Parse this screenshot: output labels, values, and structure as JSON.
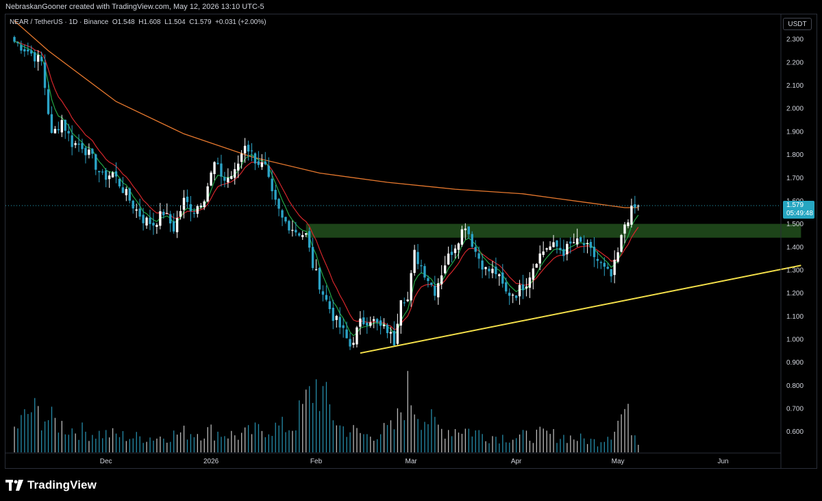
{
  "header": {
    "credit": "NebraskanGooner created with TradingView.com, May 12, 2026 13:10 UTC-5"
  },
  "legend": {
    "symbol": "NEAR / TetherUS · 1D · Binance",
    "open_label": "O",
    "open": "1.548",
    "high_label": "H",
    "high": "1.608",
    "low_label": "L",
    "low": "1.504",
    "close_label": "C",
    "close": "1.579",
    "change": "+0.031 (+2.00%)"
  },
  "currency": "USDT",
  "price_tag": {
    "price": "1.579",
    "countdown": "05:49:48"
  },
  "footer": {
    "brand": "TradingView"
  },
  "colors": {
    "background": "#000000",
    "up_candle": "#ffffff",
    "down_candle": "#2ba3c6",
    "ema_fast": "#22a745",
    "ema_mid": "#d6262b",
    "ma_slow": "#e8792e",
    "zone": "#1f4a1b",
    "trendline": "#f5e14a",
    "price_line": "#26a6c1"
  },
  "chart_data": {
    "type": "candlestick",
    "title": "NEAR / TetherUS · 1D · Binance",
    "ylim": [
      0.5,
      2.36
    ],
    "y_ticks": [
      "2.300",
      "2.200",
      "2.100",
      "2.000",
      "1.900",
      "1.800",
      "1.700",
      "1.600",
      "1.500",
      "1.400",
      "1.300",
      "1.200",
      "1.100",
      "1.000",
      "0.900",
      "0.800",
      "0.700",
      "0.600"
    ],
    "x_ticks": [
      "Dec",
      "2026",
      "Feb",
      "Mar",
      "Apr",
      "May",
      "Jun"
    ],
    "x_tick_day_index": [
      27,
      58,
      89,
      117,
      148,
      178,
      209
    ],
    "last_price": 1.579,
    "anchors": [
      [
        0,
        2.29
      ],
      [
        4,
        2.25
      ],
      [
        8,
        2.2
      ],
      [
        11,
        1.88
      ],
      [
        14,
        1.95
      ],
      [
        17,
        1.85
      ],
      [
        20,
        1.84
      ],
      [
        23,
        1.78
      ],
      [
        26,
        1.7
      ],
      [
        29,
        1.72
      ],
      [
        32,
        1.65
      ],
      [
        35,
        1.58
      ],
      [
        38,
        1.52
      ],
      [
        41,
        1.5
      ],
      [
        44,
        1.55
      ],
      [
        47,
        1.48
      ],
      [
        50,
        1.6
      ],
      [
        53,
        1.56
      ],
      [
        56,
        1.62
      ],
      [
        59,
        1.76
      ],
      [
        62,
        1.69
      ],
      [
        65,
        1.72
      ],
      [
        68,
        1.85
      ],
      [
        71,
        1.78
      ],
      [
        74,
        1.74
      ],
      [
        76,
        1.62
      ],
      [
        79,
        1.52
      ],
      [
        83,
        1.47
      ],
      [
        86,
        1.45
      ],
      [
        88,
        1.32
      ],
      [
        91,
        1.2
      ],
      [
        94,
        1.1
      ],
      [
        97,
        1.03
      ],
      [
        99,
        0.97
      ],
      [
        102,
        1.07
      ],
      [
        105,
        1.09
      ],
      [
        108,
        1.05
      ],
      [
        110,
        1.04
      ],
      [
        112,
        0.99
      ],
      [
        114,
        1.19
      ],
      [
        116,
        1.17
      ],
      [
        118,
        1.37
      ],
      [
        121,
        1.29
      ],
      [
        124,
        1.21
      ],
      [
        127,
        1.33
      ],
      [
        130,
        1.41
      ],
      [
        133,
        1.5
      ],
      [
        136,
        1.38
      ],
      [
        139,
        1.3
      ],
      [
        142,
        1.29
      ],
      [
        145,
        1.2
      ],
      [
        148,
        1.2
      ],
      [
        151,
        1.25
      ],
      [
        154,
        1.35
      ],
      [
        157,
        1.4
      ],
      [
        160,
        1.4
      ],
      [
        162,
        1.38
      ],
      [
        165,
        1.42
      ],
      [
        168,
        1.41
      ],
      [
        171,
        1.36
      ],
      [
        174,
        1.3
      ],
      [
        176,
        1.27
      ],
      [
        178,
        1.37
      ],
      [
        180,
        1.5
      ],
      [
        182,
        1.555
      ],
      [
        184,
        1.579
      ]
    ],
    "volume_anchors": [
      [
        0,
        0.15
      ],
      [
        5,
        0.28
      ],
      [
        10,
        0.22
      ],
      [
        16,
        0.16
      ],
      [
        22,
        0.13
      ],
      [
        28,
        0.12
      ],
      [
        35,
        0.1
      ],
      [
        42,
        0.1
      ],
      [
        50,
        0.13
      ],
      [
        58,
        0.14
      ],
      [
        66,
        0.11
      ],
      [
        74,
        0.16
      ],
      [
        82,
        0.17
      ],
      [
        89,
        0.45
      ],
      [
        96,
        0.17
      ],
      [
        104,
        0.11
      ],
      [
        112,
        0.16
      ],
      [
        116,
        0.4
      ],
      [
        120,
        0.25
      ],
      [
        126,
        0.15
      ],
      [
        132,
        0.16
      ],
      [
        140,
        0.11
      ],
      [
        148,
        0.1
      ],
      [
        156,
        0.12
      ],
      [
        164,
        0.1
      ],
      [
        172,
        0.07
      ],
      [
        176,
        0.14
      ],
      [
        180,
        0.28
      ],
      [
        184,
        0.08
      ]
    ],
    "series": [
      {
        "name": "",
        "type": "ema_fast",
        "values_from": "anchors",
        "period": 5
      },
      {
        "name": "",
        "type": "ema_mid",
        "values_from": "anchors",
        "period": 10
      },
      {
        "name": "",
        "type": "ma_slow",
        "points": [
          [
            0,
            2.38
          ],
          [
            10,
            2.25
          ],
          [
            30,
            2.03
          ],
          [
            50,
            1.89
          ],
          [
            70,
            1.79
          ],
          [
            90,
            1.72
          ],
          [
            110,
            1.68
          ],
          [
            130,
            1.65
          ],
          [
            150,
            1.63
          ],
          [
            160,
            1.61
          ],
          [
            170,
            1.59
          ],
          [
            180,
            1.57
          ],
          [
            184,
            1.57
          ]
        ]
      }
    ],
    "zone": {
      "y_low": 1.44,
      "y_high": 1.5,
      "x_from": 86,
      "x_to": 232
    },
    "trendline": {
      "points": [
        [
          102,
          0.94
        ],
        [
          232,
          1.32
        ]
      ]
    },
    "grid": false,
    "legend": "top-left"
  }
}
